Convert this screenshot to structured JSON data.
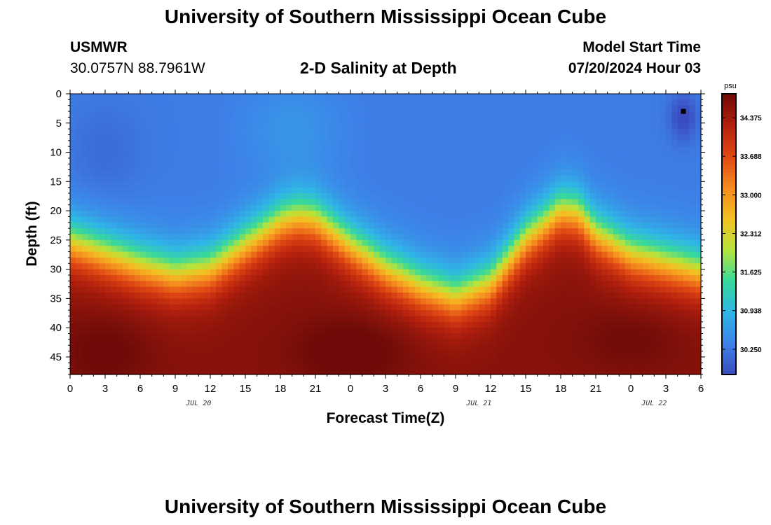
{
  "page": {
    "title": "University of Southern Mississippi Ocean Cube",
    "station": "USMWR",
    "coordinates": "30.0757N  88.7961W",
    "subtitle": "2-D Salinity at Depth",
    "model_start_label": "Model Start Time",
    "model_start_value": "07/20/2024 Hour 03",
    "footer_title": "University of Southern Mississippi Ocean Cube"
  },
  "chart_data": {
    "type": "heatmap",
    "title": "2-D Salinity at Depth",
    "xlabel": "Forecast Time(Z)",
    "ylabel": "Depth (ft)",
    "x_hours_range": [
      0,
      54
    ],
    "x_tick_labels": [
      "0",
      "3",
      "6",
      "9",
      "12",
      "15",
      "18",
      "21",
      "0",
      "3",
      "6",
      "9",
      "12",
      "15",
      "18",
      "21",
      "0",
      "3",
      "6"
    ],
    "day_labels": [
      {
        "hour": 11,
        "text": "JUL 20"
      },
      {
        "hour": 35,
        "text": "JUL 21"
      },
      {
        "hour": 50,
        "text": "JUL 22"
      }
    ],
    "ylim": [
      0,
      48
    ],
    "y_ticks": [
      0,
      5,
      10,
      15,
      20,
      25,
      30,
      35,
      40,
      45
    ],
    "units": "psu",
    "colorbar_range": [
      29.8,
      34.8
    ],
    "colorbar_ticks": [
      "34.375",
      "33.688",
      "33.000",
      "32.312",
      "31.625",
      "30.938",
      "30.250"
    ],
    "colormap": [
      "#3b4cc0",
      "#3d82e8",
      "#2fb6e6",
      "#37d99a",
      "#b7e43a",
      "#f3c022",
      "#f58a1f",
      "#e04813",
      "#b3200e",
      "#6e0b08"
    ],
    "halocline_depth_ft": {
      "hours": [
        0,
        3,
        6,
        9,
        12,
        15,
        18,
        19.5,
        21,
        24,
        27,
        30,
        33,
        36,
        39,
        42,
        43.5,
        45,
        48,
        51,
        54
      ],
      "depth": [
        25.5,
        27.5,
        29.5,
        31,
        30,
        26,
        22,
        21,
        21.5,
        26,
        30,
        33,
        35,
        32.5,
        25,
        20,
        20.5,
        24,
        27.5,
        29,
        30.5
      ]
    },
    "surface_salinity_psu": 30.3,
    "deep_salinity_psu": 34.6,
    "marker": {
      "hour": 52.5,
      "depth_ft": 3,
      "label": "station-marker"
    }
  }
}
